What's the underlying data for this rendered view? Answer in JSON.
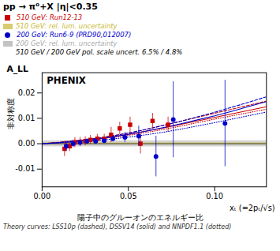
{
  "chart_data": {
    "type": "scatter",
    "title": "pp → π⁰+X  |η|<0.35",
    "xlabel": "xₜ (=2pₜ/√s)",
    "ylabel": "非対称度",
    "annotations": [
      "A_LL",
      "PHENIX",
      "Theory curves: LSS10p (dashed), DSSV14 (solid) and NNPDF1.1 (dotted)",
      "510 GeV / 200 GeV pol. scale uncert. 6.5% / 4.8%",
      "陽子中のグルーオンのエネルギー比"
    ],
    "xlim": [
      0,
      0.13
    ],
    "ylim": [
      -0.017,
      0.028
    ],
    "xticks": [
      {
        "value": 0,
        "label": "0.00"
      },
      0.05,
      {
        "value": 0.1,
        "label": "0.10"
      }
    ],
    "yticks": [
      -0.01,
      {
        "value": 0,
        "label": "0.00"
      },
      0.01,
      0.02
    ],
    "legend": "upper left",
    "series": [
      {
        "name": "510 GeV: Run12-13",
        "type": "scatter",
        "marker": "square",
        "color": "#cc0000",
        "x": [
          0.013,
          0.016,
          0.019,
          0.022,
          0.025,
          0.028,
          0.032,
          0.036,
          0.04,
          0.045,
          0.051,
          0.057,
          0.064,
          0.073
        ],
        "values": [
          -0.002,
          -0.001,
          0.0005,
          0.0007,
          0.001,
          0.0015,
          0.002,
          0.002,
          0.0035,
          0.006,
          0.0075,
          0.0,
          0.009,
          0.0075
        ],
        "yerr": [
          0.003,
          0.002,
          0.002,
          0.0018,
          0.0018,
          0.0018,
          0.0017,
          0.0018,
          0.003,
          0.0025,
          0.003,
          0.004,
          0.003,
          0.003
        ]
      },
      {
        "name": "510 GeV: rel. lum. uncertainty",
        "type": "band",
        "color": "#c8b830",
        "half_width": 0.0004
      },
      {
        "name": "200 GeV: Run6-9 (PRD90,012007)",
        "type": "scatter",
        "marker": "circle",
        "color": "#0000cc",
        "x": [
          0.014,
          0.018,
          0.022,
          0.026,
          0.031,
          0.036,
          0.041,
          0.048,
          0.056,
          0.066,
          0.076,
          0.106
        ],
        "values": [
          -0.001,
          0.0,
          0.0005,
          0.001,
          0.001,
          0.0012,
          0.002,
          0.0025,
          0.003,
          -0.005,
          0.0095,
          0.008
        ],
        "yerr": [
          0.002,
          0.0015,
          0.0012,
          0.001,
          0.001,
          0.001,
          0.001,
          0.002,
          0.004,
          0.008,
          0.015,
          0.017
        ]
      },
      {
        "name": "200 GeV: rel. lum. uncertainty",
        "type": "band",
        "color": "#aaaaaa",
        "half_width": 0.0012
      },
      {
        "type": "line",
        "line_style": "dashed",
        "color": "#cc0000",
        "x": [
          0.0,
          0.01,
          0.02,
          0.03,
          0.04,
          0.05,
          0.06,
          0.07,
          0.08,
          0.09,
          0.1,
          0.11,
          0.12,
          0.13
        ],
        "values": [
          0.0,
          0.0006,
          0.0013,
          0.002,
          0.003,
          0.0042,
          0.0056,
          0.0072,
          0.0088,
          0.0104,
          0.012,
          0.0136,
          0.0152,
          0.0168
        ]
      },
      {
        "type": "line",
        "line_style": "solid",
        "color": "#cc0000",
        "x": [
          0.0,
          0.01,
          0.02,
          0.03,
          0.04,
          0.05,
          0.06,
          0.07,
          0.08,
          0.09,
          0.1,
          0.11,
          0.12,
          0.13
        ],
        "values": [
          0.0,
          0.0005,
          0.0011,
          0.0018,
          0.0027,
          0.0037,
          0.0049,
          0.0062,
          0.0076,
          0.009,
          0.0104,
          0.0118,
          0.0132,
          0.0146
        ]
      },
      {
        "type": "line",
        "line_style": "dotted",
        "color": "#cc0000",
        "x": [
          0.0,
          0.01,
          0.02,
          0.03,
          0.04,
          0.05,
          0.06,
          0.07,
          0.08,
          0.09,
          0.1,
          0.11,
          0.12,
          0.13
        ],
        "values": [
          0.0,
          0.0004,
          0.001,
          0.0016,
          0.0024,
          0.0033,
          0.0044,
          0.0056,
          0.0069,
          0.0083,
          0.0097,
          0.011,
          0.0123,
          0.0136
        ]
      },
      {
        "type": "line",
        "line_style": "dashed",
        "color": "#0000cc",
        "x": [
          0.0,
          0.01,
          0.02,
          0.03,
          0.04,
          0.05,
          0.06,
          0.07,
          0.08,
          0.09,
          0.1,
          0.11,
          0.12,
          0.13
        ],
        "values": [
          0.0,
          0.0005,
          0.0012,
          0.002,
          0.003,
          0.0042,
          0.0056,
          0.0072,
          0.0088,
          0.0106,
          0.0124,
          0.0144,
          0.0164,
          0.0185
        ]
      },
      {
        "type": "line",
        "line_style": "solid",
        "color": "#0000cc",
        "x": [
          0.0,
          0.01,
          0.02,
          0.03,
          0.04,
          0.05,
          0.06,
          0.07,
          0.08,
          0.09,
          0.1,
          0.11,
          0.12,
          0.13
        ],
        "values": [
          0.0,
          0.0004,
          0.001,
          0.0017,
          0.0026,
          0.0037,
          0.0049,
          0.0063,
          0.0078,
          0.0094,
          0.011,
          0.0128,
          0.0147,
          0.0166
        ]
      },
      {
        "type": "line",
        "line_style": "dotted",
        "color": "#0000cc",
        "x": [
          0.0,
          0.01,
          0.02,
          0.03,
          0.04,
          0.05,
          0.06,
          0.07,
          0.08,
          0.09,
          0.1,
          0.11,
          0.12,
          0.13
        ],
        "values": [
          0.0,
          0.0003,
          0.0007,
          0.0012,
          0.0018,
          0.0026,
          0.0035,
          0.0045,
          0.0057,
          0.007,
          0.0083,
          0.0097,
          0.0111,
          0.0125
        ]
      }
    ]
  }
}
